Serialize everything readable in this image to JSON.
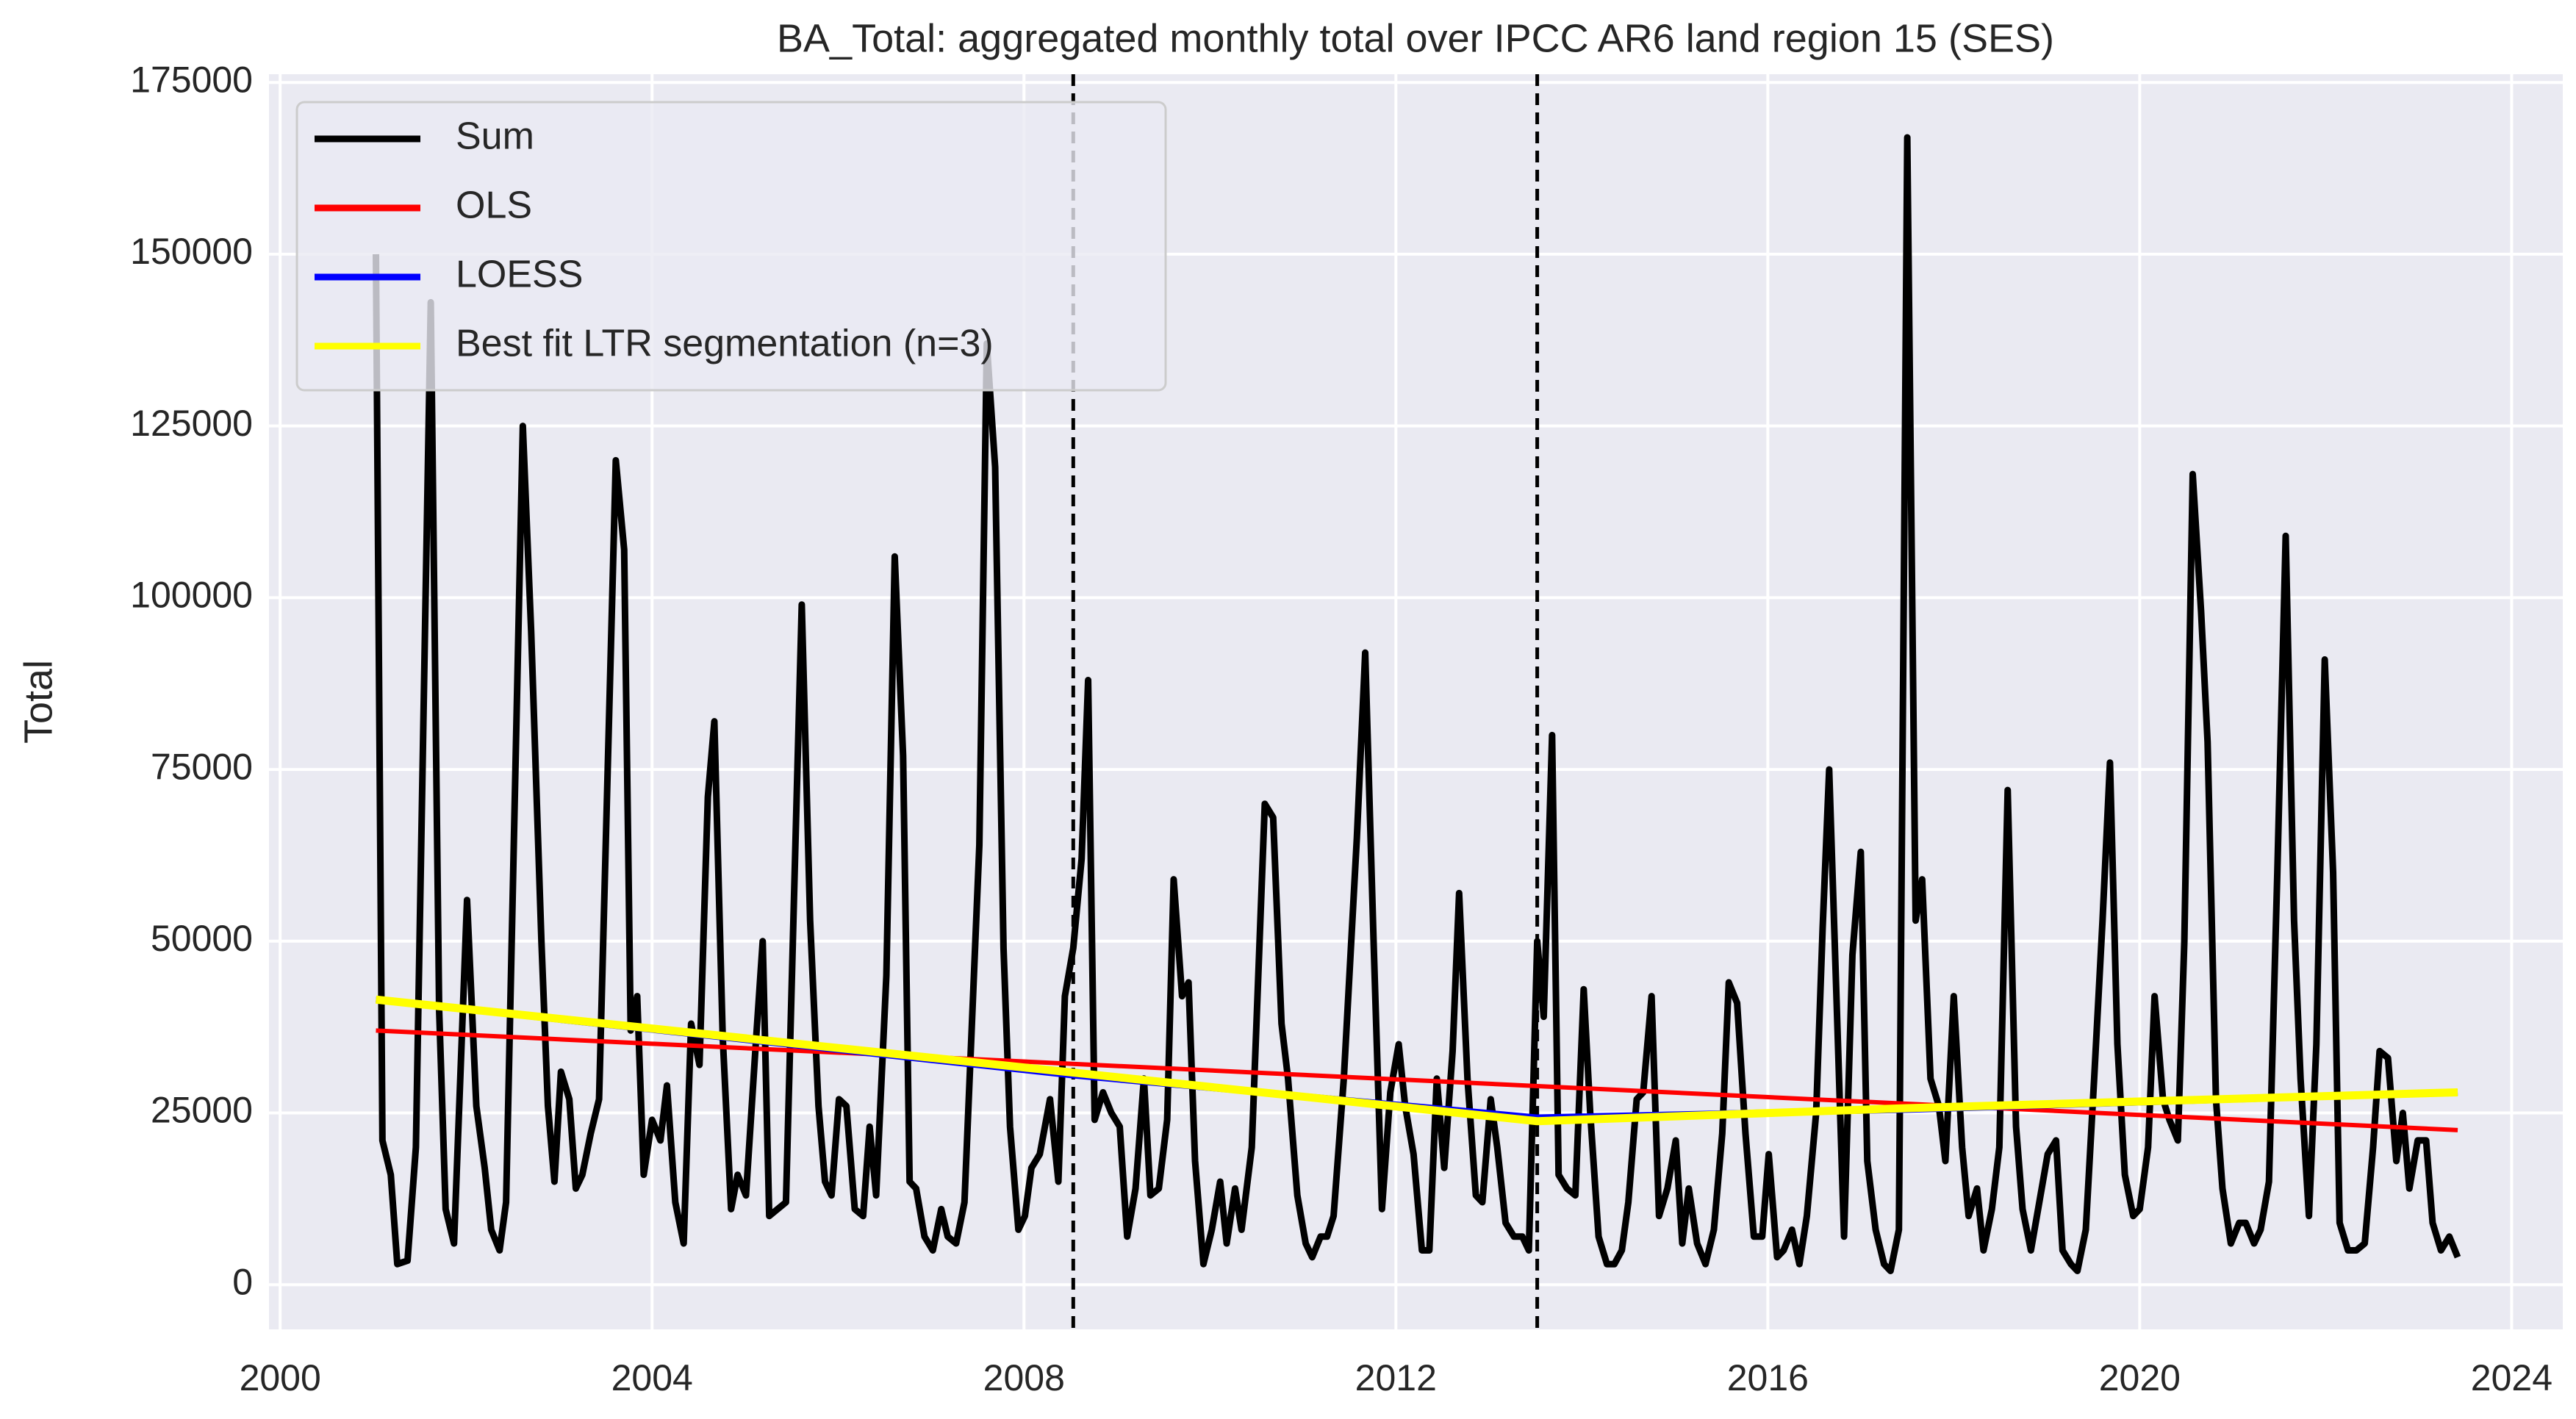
{
  "chart_data": {
    "type": "line",
    "title": "BA_Total: aggregated monthly total over IPCC AR6 land region 15 (SES)",
    "ylabel": "Total",
    "xlim": [
      1999.88,
      2024.55
    ],
    "ylim": [
      -6500,
      176200
    ],
    "xticks": [
      2000,
      2004,
      2008,
      2012,
      2016,
      2020,
      2024
    ],
    "yticks": [
      0,
      25000,
      50000,
      75000,
      100000,
      125000,
      150000,
      175000
    ],
    "grid": true,
    "legend": "upper left",
    "vlines": [
      2008.53,
      2013.52
    ],
    "vline_color": "#000000",
    "series": [
      {
        "name": "Sum",
        "color": "#000000",
        "x": [
          2001.03,
          2001.1,
          2001.19,
          2001.26,
          2001.37,
          2001.46,
          2001.62,
          2001.71,
          2001.78,
          2001.87,
          2002.01,
          2002.11,
          2002.2,
          2002.27,
          2002.36,
          2002.43,
          2002.61,
          2002.7,
          2002.81,
          2002.88,
          2002.95,
          2003.02,
          2003.11,
          2003.18,
          2003.25,
          2003.34,
          2003.43,
          2003.61,
          2003.7,
          2003.77,
          2003.84,
          2003.91,
          2004.0,
          2004.09,
          2004.16,
          2004.25,
          2004.34,
          2004.42,
          2004.51,
          2004.6,
          2004.67,
          2004.76,
          2004.85,
          2004.92,
          2005.01,
          2005.12,
          2005.19,
          2005.26,
          2005.35,
          2005.44,
          2005.61,
          2005.7,
          2005.79,
          2005.86,
          2005.93,
          2006.01,
          2006.09,
          2006.18,
          2006.27,
          2006.34,
          2006.41,
          2006.52,
          2006.61,
          2006.7,
          2006.77,
          2006.84,
          2006.93,
          2007.02,
          2007.11,
          2007.18,
          2007.27,
          2007.36,
          2007.52,
          2007.6,
          2007.69,
          2007.78,
          2007.85,
          2007.94,
          2008.01,
          2008.08,
          2008.17,
          2008.28,
          2008.37,
          2008.44,
          2008.53,
          2008.62,
          2008.69,
          2008.76,
          2008.85,
          2008.94,
          2009.03,
          2009.11,
          2009.2,
          2009.29,
          2009.36,
          2009.45,
          2009.54,
          2009.61,
          2009.7,
          2009.77,
          2009.84,
          2009.93,
          2010.02,
          2010.11,
          2010.18,
          2010.27,
          2010.34,
          2010.45,
          2010.59,
          2010.68,
          2010.77,
          2010.84,
          2010.94,
          2011.03,
          2011.1,
          2011.19,
          2011.26,
          2011.33,
          2011.44,
          2011.58,
          2011.67,
          2011.76,
          2011.85,
          2011.94,
          2012.03,
          2012.1,
          2012.19,
          2012.28,
          2012.36,
          2012.44,
          2012.52,
          2012.61,
          2012.68,
          2012.77,
          2012.86,
          2012.93,
          2013.02,
          2013.09,
          2013.18,
          2013.27,
          2013.36,
          2013.43,
          2013.52,
          2013.59,
          2013.68,
          2013.75,
          2013.84,
          2013.93,
          2014.02,
          2014.09,
          2014.18,
          2014.27,
          2014.35,
          2014.43,
          2014.5,
          2014.59,
          2014.66,
          2014.75,
          2014.83,
          2014.92,
          2015.01,
          2015.08,
          2015.15,
          2015.24,
          2015.33,
          2015.42,
          2015.51,
          2015.58,
          2015.67,
          2015.76,
          2015.85,
          2015.94,
          2016.01,
          2016.1,
          2016.17,
          2016.26,
          2016.34,
          2016.42,
          2016.52,
          2016.59,
          2016.66,
          2016.75,
          2016.82,
          2016.91,
          2017.0,
          2017.07,
          2017.16,
          2017.25,
          2017.32,
          2017.41,
          2017.5,
          2017.59,
          2017.66,
          2017.75,
          2017.84,
          2017.91,
          2018.0,
          2018.09,
          2018.16,
          2018.25,
          2018.32,
          2018.41,
          2018.49,
          2018.58,
          2018.67,
          2018.74,
          2018.83,
          2018.92,
          2019.01,
          2019.1,
          2019.17,
          2019.26,
          2019.33,
          2019.42,
          2019.51,
          2019.6,
          2019.68,
          2019.76,
          2019.84,
          2019.93,
          2020.0,
          2020.09,
          2020.16,
          2020.25,
          2020.32,
          2020.41,
          2020.48,
          2020.57,
          2020.66,
          2020.73,
          2020.82,
          2020.89,
          2020.98,
          2021.07,
          2021.14,
          2021.23,
          2021.3,
          2021.39,
          2021.48,
          2021.57,
          2021.66,
          2021.73,
          2021.82,
          2021.9,
          2021.99,
          2022.08,
          2022.15,
          2022.24,
          2022.33,
          2022.42,
          2022.51,
          2022.58,
          2022.67,
          2022.76,
          2022.83,
          2022.9,
          2022.99,
          2023.08,
          2023.15,
          2023.24,
          2023.33,
          2023.42
        ],
        "values": [
          150000,
          21000,
          16000,
          3000,
          3500,
          20000,
          143000,
          40000,
          11000,
          6000,
          56000,
          26000,
          17000,
          8000,
          5000,
          12000,
          125000,
          95000,
          50000,
          26000,
          15000,
          31000,
          27000,
          14000,
          16000,
          22000,
          27000,
          120000,
          107000,
          37000,
          42000,
          16000,
          24000,
          21000,
          29000,
          12000,
          6000,
          38000,
          32000,
          71000,
          82000,
          36000,
          11000,
          16000,
          13000,
          36000,
          50000,
          10000,
          11000,
          12000,
          99000,
          53000,
          26000,
          15000,
          13000,
          27000,
          26000,
          11000,
          10000,
          23000,
          13000,
          45000,
          106000,
          77000,
          15000,
          14000,
          7000,
          5000,
          11000,
          7000,
          6000,
          12000,
          64000,
          137000,
          119000,
          49000,
          23000,
          8000,
          10000,
          17000,
          19000,
          27000,
          15000,
          42000,
          49000,
          62000,
          88000,
          24000,
          28000,
          25000,
          23000,
          7000,
          14000,
          30000,
          13000,
          14000,
          24000,
          59000,
          42000,
          44000,
          18000,
          3000,
          8000,
          15000,
          6000,
          14000,
          8000,
          20000,
          70000,
          68000,
          38000,
          30000,
          13000,
          6000,
          4000,
          7000,
          7000,
          10000,
          30000,
          65000,
          92000,
          50000,
          11000,
          28000,
          35000,
          26000,
          19000,
          5000,
          5000,
          30000,
          17000,
          34000,
          57000,
          30000,
          13000,
          12000,
          27000,
          20000,
          9000,
          7000,
          7000,
          5000,
          50000,
          39000,
          80000,
          16000,
          14000,
          13000,
          43000,
          25000,
          7000,
          3000,
          3000,
          5000,
          12000,
          27000,
          28000,
          42000,
          10000,
          14000,
          21000,
          6000,
          14000,
          6000,
          3000,
          8000,
          22000,
          44000,
          41000,
          22000,
          7000,
          7000,
          19000,
          4000,
          5000,
          8000,
          3000,
          10000,
          25000,
          52000,
          75000,
          37000,
          7000,
          48000,
          63000,
          18000,
          8000,
          3000,
          2000,
          8000,
          167000,
          53000,
          59000,
          30000,
          26000,
          18000,
          42000,
          20000,
          10000,
          14000,
          5000,
          11000,
          20000,
          72000,
          23000,
          11000,
          5000,
          12000,
          19000,
          21000,
          5000,
          3000,
          2000,
          8000,
          30000,
          53000,
          76000,
          35000,
          16000,
          10000,
          11000,
          20000,
          42000,
          27000,
          24000,
          21000,
          50000,
          118000,
          98000,
          79000,
          27000,
          14000,
          6000,
          9000,
          9000,
          6000,
          8000,
          15000,
          60000,
          109000,
          53000,
          30000,
          10000,
          35000,
          91000,
          60000,
          9000,
          5000,
          5000,
          6000,
          20000,
          34000,
          33000,
          18000,
          25000,
          14000,
          21000,
          21000,
          9000,
          5000,
          7000,
          4000
        ]
      },
      {
        "name": "OLS",
        "color": "#ff0000",
        "x": [
          2001.03,
          2023.42
        ],
        "values": [
          37000,
          22500
        ]
      },
      {
        "name": "LOESS",
        "color": "#0000ff",
        "x": [
          2001.03,
          2008.53,
          2013.52,
          2017.5,
          2023.42
        ],
        "values": [
          41500,
          30500,
          24300,
          25500,
          28000
        ]
      },
      {
        "name": "Best fit LTR segmentation (n=3)",
        "color": "#ffff00",
        "x": [
          2001.03,
          2013.52,
          2017.5,
          2023.42
        ],
        "values": [
          41500,
          23800,
          25700,
          28000
        ]
      }
    ]
  }
}
